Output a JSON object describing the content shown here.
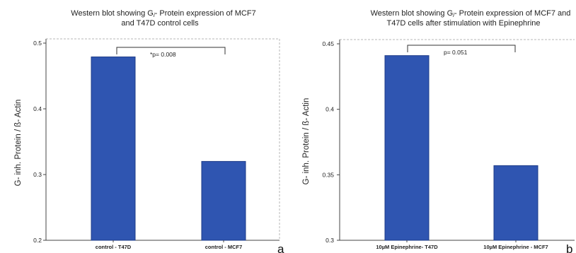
{
  "chart_data": [
    {
      "type": "bar",
      "title_line1": "Western blot showing G",
      "title_sub": "i",
      "title_line1_rest": "- Protein expression of MCF7",
      "title_line2": "and T47D control cells",
      "ylabel": "G- inh. Protein / ß- Actin",
      "categories": [
        "control - T47D",
        "control - MCF7"
      ],
      "values": [
        0.479,
        0.32
      ],
      "ylim": [
        0.2,
        0.5
      ],
      "yticks": [
        "0.2",
        "0.3",
        "0.4",
        "0.5"
      ],
      "annotation": "*p= 0.008",
      "panel_label": "a",
      "bar_color": "#2f55b1"
    },
    {
      "type": "bar",
      "title_line1": "Western blot showing G",
      "title_sub": "i",
      "title_line1_rest": "- Protein expression of MCF7 and",
      "title_line2": "T47D cells after stimulation with Epinephrine",
      "ylabel": "G- inh. Protein / ß- Actin",
      "categories": [
        "10µM Epinephrine- T47D",
        "10µM Epinephrine - MCF7"
      ],
      "values": [
        0.441,
        0.357
      ],
      "ylim": [
        0.3,
        0.45
      ],
      "yticks": [
        "0.3",
        "0.35",
        "0.4",
        "0.45"
      ],
      "annotation": "p= 0.051",
      "panel_label": "b",
      "bar_color": "#2f55b1"
    }
  ]
}
